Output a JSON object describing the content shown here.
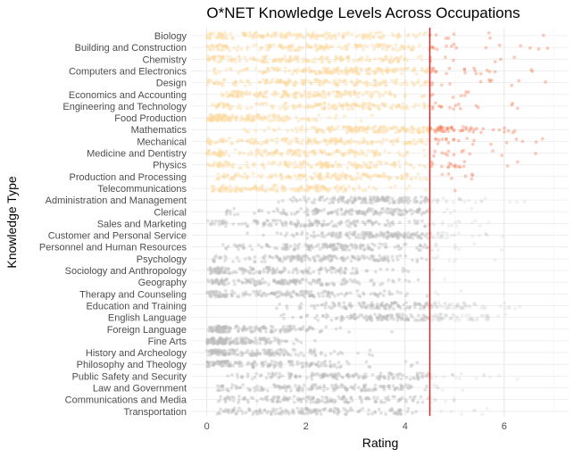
{
  "chart_data": {
    "type": "scatter",
    "title": "O*NET Knowledge Levels Across Occupations",
    "xlabel": "Rating",
    "ylabel": "Knowledge Type",
    "xlim": [
      -0.3,
      7.3
    ],
    "x_ticks": [
      0,
      2,
      4,
      6
    ],
    "grid": true,
    "legend": "none",
    "reference_line": {
      "x": 4.5,
      "color": "#e41a1c"
    },
    "colors": {
      "stem_below": "#fdd9a0",
      "stem_above": "#f46d43",
      "other": "#bdbdbd"
    },
    "categories": [
      {
        "label": "Biology",
        "group": "stem",
        "min": 0,
        "max": 6.9,
        "center": 1.9,
        "spread": 1.5,
        "count": 170
      },
      {
        "label": "Building and Construction",
        "group": "stem",
        "min": 0,
        "max": 6.9,
        "center": 2.2,
        "spread": 1.6,
        "count": 170
      },
      {
        "label": "Chemistry",
        "group": "stem",
        "min": 0,
        "max": 6.3,
        "center": 2.0,
        "spread": 1.5,
        "count": 170
      },
      {
        "label": "Computers and Electronics",
        "group": "stem",
        "min": 0.1,
        "max": 6.8,
        "center": 3.0,
        "spread": 1.4,
        "count": 190
      },
      {
        "label": "Design",
        "group": "stem",
        "min": 0,
        "max": 6.9,
        "center": 2.5,
        "spread": 1.5,
        "count": 170
      },
      {
        "label": "Economics and Accounting",
        "group": "stem",
        "min": 0.3,
        "max": 6.0,
        "center": 2.3,
        "spread": 1.3,
        "count": 170
      },
      {
        "label": "Engineering and Technology",
        "group": "stem",
        "min": 0.1,
        "max": 6.6,
        "center": 2.6,
        "spread": 1.5,
        "count": 170
      },
      {
        "label": "Food Production",
        "group": "stem",
        "min": 0,
        "max": 6.0,
        "center": 0.7,
        "spread": 0.9,
        "count": 150
      },
      {
        "label": "Mathematics",
        "group": "stem",
        "min": 0.7,
        "max": 6.9,
        "center": 3.5,
        "spread": 1.2,
        "count": 200
      },
      {
        "label": "Mechanical",
        "group": "stem",
        "min": 0,
        "max": 6.9,
        "center": 2.4,
        "spread": 1.7,
        "count": 180
      },
      {
        "label": "Medicine and Dentistry",
        "group": "stem",
        "min": 0,
        "max": 6.8,
        "center": 2.0,
        "spread": 1.6,
        "count": 170
      },
      {
        "label": "Physics",
        "group": "stem",
        "min": 0,
        "max": 6.5,
        "center": 2.1,
        "spread": 1.6,
        "count": 170
      },
      {
        "label": "Production and Processing",
        "group": "stem",
        "min": 0.2,
        "max": 5.7,
        "center": 2.3,
        "spread": 1.3,
        "count": 160
      },
      {
        "label": "Telecommunications",
        "group": "stem",
        "min": 0.1,
        "max": 5.6,
        "center": 1.6,
        "spread": 1.2,
        "count": 150
      },
      {
        "label": "Administration and Management",
        "group": "other",
        "min": 1.0,
        "max": 6.5,
        "center": 3.5,
        "spread": 1.0,
        "count": 160
      },
      {
        "label": "Clerical",
        "group": "other",
        "min": 0.3,
        "max": 6.3,
        "center": 3.0,
        "spread": 1.2,
        "count": 160
      },
      {
        "label": "Sales and Marketing",
        "group": "other",
        "min": 0,
        "max": 6.7,
        "center": 2.4,
        "spread": 1.4,
        "count": 160
      },
      {
        "label": "Customer and Personal Service",
        "group": "other",
        "min": 0.6,
        "max": 6.7,
        "center": 3.6,
        "spread": 1.1,
        "count": 170
      },
      {
        "label": "Personnel and Human Resources",
        "group": "other",
        "min": 0.3,
        "max": 6.5,
        "center": 2.5,
        "spread": 1.2,
        "count": 160
      },
      {
        "label": "Psychology",
        "group": "other",
        "min": 0.1,
        "max": 6.9,
        "center": 2.4,
        "spread": 1.4,
        "count": 160
      },
      {
        "label": "Sociology and Anthropology",
        "group": "other",
        "min": 0,
        "max": 6.7,
        "center": 1.5,
        "spread": 1.2,
        "count": 160
      },
      {
        "label": "Geography",
        "group": "other",
        "min": 0,
        "max": 6.0,
        "center": 1.5,
        "spread": 1.2,
        "count": 160
      },
      {
        "label": "Therapy and Counseling",
        "group": "other",
        "min": 0,
        "max": 6.9,
        "center": 1.6,
        "spread": 1.4,
        "count": 160
      },
      {
        "label": "Education and Training",
        "group": "other",
        "min": 1.1,
        "max": 6.9,
        "center": 3.8,
        "spread": 1.1,
        "count": 170
      },
      {
        "label": "English Language",
        "group": "other",
        "min": 1.2,
        "max": 6.8,
        "center": 4.0,
        "spread": 1.0,
        "count": 170
      },
      {
        "label": "Foreign Language",
        "group": "other",
        "min": 0,
        "max": 4.5,
        "center": 0.9,
        "spread": 0.8,
        "count": 150
      },
      {
        "label": "Fine Arts",
        "group": "other",
        "min": 0,
        "max": 5.0,
        "center": 0.6,
        "spread": 0.7,
        "count": 150
      },
      {
        "label": "History and Archeology",
        "group": "other",
        "min": 0,
        "max": 5.1,
        "center": 1.0,
        "spread": 0.9,
        "count": 150
      },
      {
        "label": "Philosophy and Theology",
        "group": "other",
        "min": 0,
        "max": 6.9,
        "center": 1.2,
        "spread": 1.1,
        "count": 150
      },
      {
        "label": "Public Safety and Security",
        "group": "other",
        "min": 0.4,
        "max": 6.4,
        "center": 2.9,
        "spread": 1.2,
        "count": 160
      },
      {
        "label": "Law and Government",
        "group": "other",
        "min": 0.2,
        "max": 6.8,
        "center": 2.5,
        "spread": 1.3,
        "count": 160
      },
      {
        "label": "Communications and Media",
        "group": "other",
        "min": 0.2,
        "max": 6.7,
        "center": 2.3,
        "spread": 1.3,
        "count": 160
      },
      {
        "label": "Transportation",
        "group": "other",
        "min": 0.2,
        "max": 6.7,
        "center": 2.1,
        "spread": 1.3,
        "count": 160
      }
    ]
  }
}
